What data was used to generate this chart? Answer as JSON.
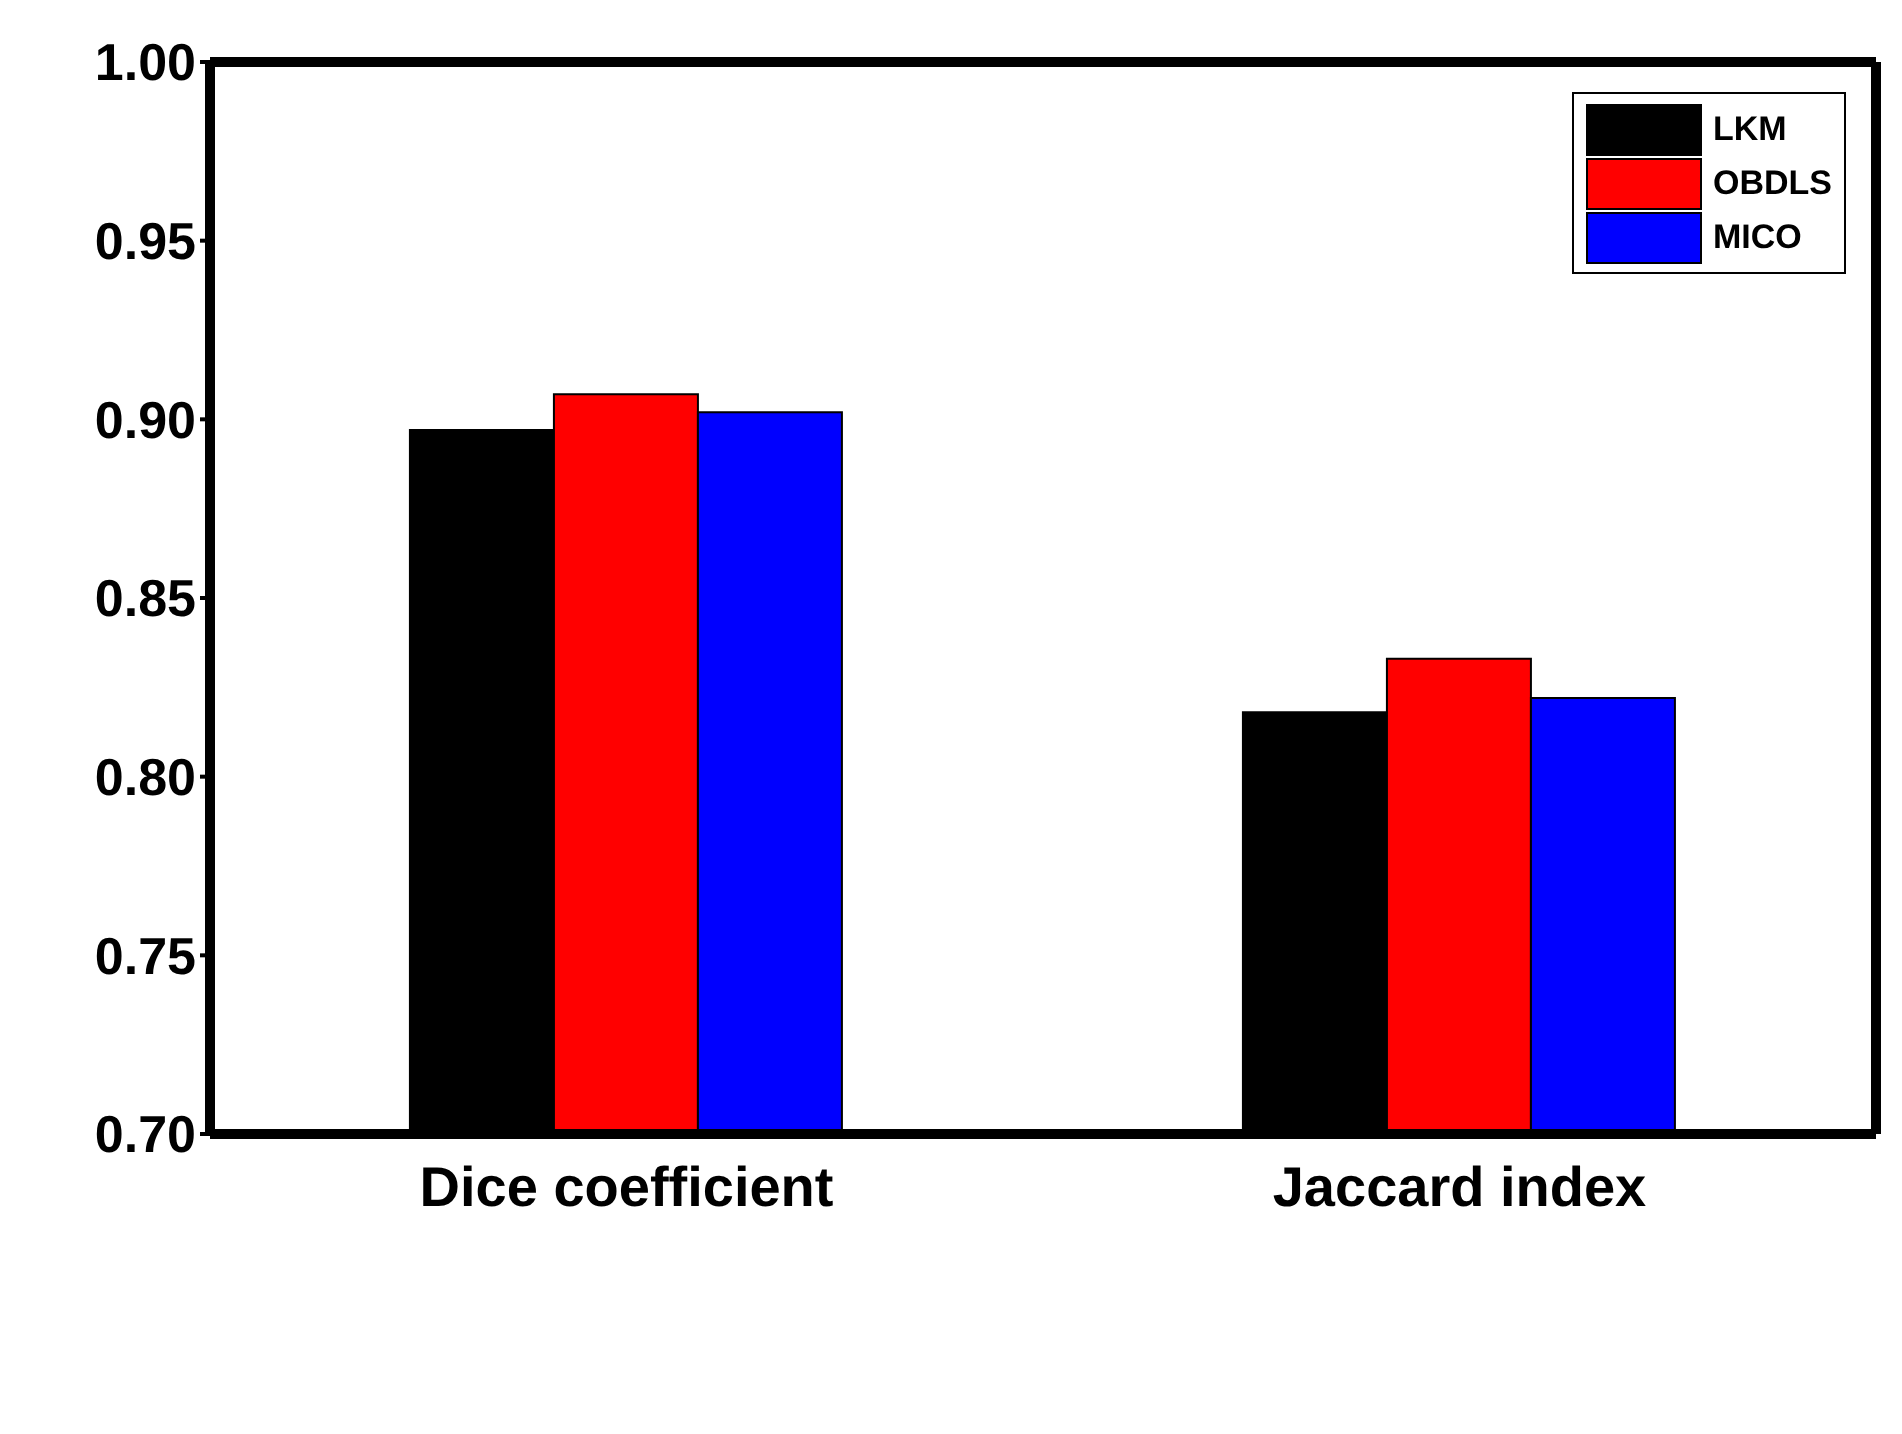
{
  "chart_data": {
    "type": "bar",
    "categories": [
      "Dice coefficient",
      "Jaccard index"
    ],
    "series": [
      {
        "name": "LKM",
        "color": "#000000",
        "values": [
          0.897,
          0.818
        ]
      },
      {
        "name": "OBDLS",
        "color": "#ff0000",
        "values": [
          0.907,
          0.833
        ]
      },
      {
        "name": "MICO",
        "color": "#0000ff",
        "values": [
          0.902,
          0.822
        ]
      }
    ],
    "ylim": [
      0.7,
      1.0
    ],
    "yticks": [
      {
        "value": 0.7,
        "label": "0.70"
      },
      {
        "value": 0.75,
        "label": "0.75"
      },
      {
        "value": 0.8,
        "label": "0.80"
      },
      {
        "value": 0.85,
        "label": "0.85"
      },
      {
        "value": 0.9,
        "label": "0.90"
      },
      {
        "value": 0.95,
        "label": "0.95"
      },
      {
        "value": 1.0,
        "label": "1.00"
      }
    ],
    "legend": "top right"
  }
}
